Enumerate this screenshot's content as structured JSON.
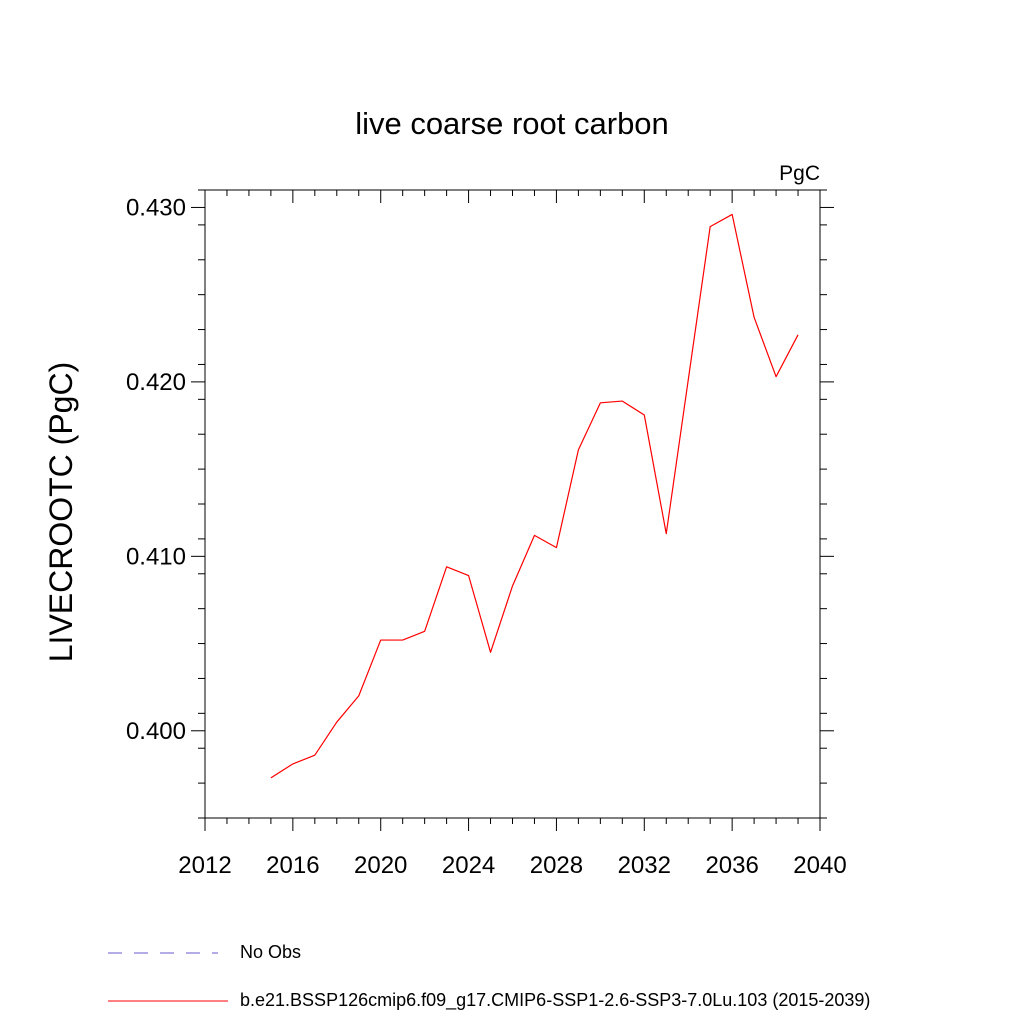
{
  "chart_data": {
    "type": "line",
    "title": "live coarse root carbon",
    "units_label": "PgC",
    "xlabel": "",
    "ylabel": "LIVECROOTC  (PgC)",
    "xlim": [
      2012,
      2040
    ],
    "ylim": [
      0.395,
      0.431
    ],
    "x_ticks": [
      2012,
      2016,
      2020,
      2024,
      2028,
      2032,
      2036,
      2040
    ],
    "x_tick_labels": [
      "2012",
      "2016",
      "2020",
      "2024",
      "2028",
      "2032",
      "2036",
      "2040"
    ],
    "y_ticks": [
      0.4,
      0.41,
      0.42,
      0.43
    ],
    "y_tick_labels": [
      "0.400",
      "0.410",
      "0.420",
      "0.430"
    ],
    "grid": false,
    "legend_position": "bottom",
    "series": [
      {
        "name": "b.e21.BSSP126cmip6.f09_g17.CMIP6-SSP1-2.6-SSP3-7.0Lu.103 (2015-2039)",
        "color": "#ff0000",
        "style": "solid",
        "x": [
          2015,
          2016,
          2017,
          2018,
          2019,
          2020,
          2021,
          2022,
          2023,
          2024,
          2025,
          2026,
          2027,
          2028,
          2029,
          2030,
          2031,
          2032,
          2033,
          2034,
          2035,
          2036,
          2037,
          2038,
          2039
        ],
        "values": [
          0.3973,
          0.3981,
          0.3986,
          0.4005,
          0.402,
          0.4052,
          0.4052,
          0.4057,
          0.4094,
          0.4089,
          0.4045,
          0.4083,
          0.4112,
          0.4105,
          0.4161,
          0.4188,
          0.4189,
          0.4181,
          0.4113,
          0.4201,
          0.4289,
          0.4296,
          0.4237,
          0.4203,
          0.4227
        ]
      }
    ],
    "legend": [
      {
        "label": "No Obs",
        "color": "#6a5acd",
        "style": "dashed"
      },
      {
        "label": "b.e21.BSSP126cmip6.f09_g17.CMIP6-SSP1-2.6-SSP3-7.0Lu.103 (2015-2039)",
        "color": "#ff0000",
        "style": "solid"
      }
    ]
  }
}
